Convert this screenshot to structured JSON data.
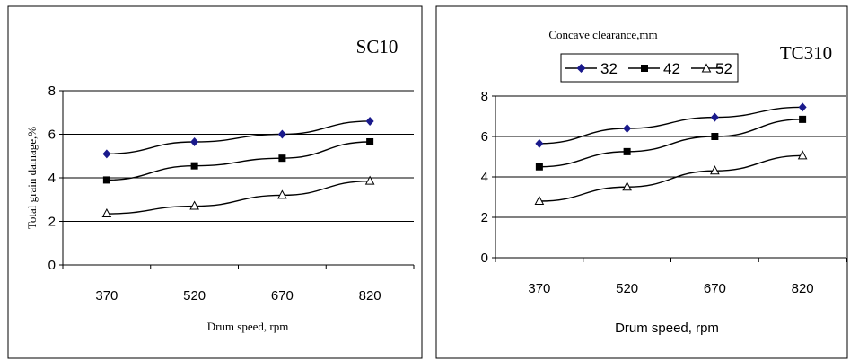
{
  "chart_data": [
    {
      "type": "line",
      "title": "SC10",
      "xlabel": "Drum speed, rpm",
      "ylabel": "Total grain damage,%",
      "categories": [
        "370",
        "520",
        "670",
        "820"
      ],
      "ylim": [
        0,
        8
      ],
      "yticks": [
        "0",
        "2",
        "4",
        "6",
        "8"
      ],
      "grid": true,
      "legend": null,
      "series": [
        {
          "values": [
            5.1,
            5.65,
            6.0,
            6.6
          ],
          "marker": "diamond",
          "color": "#1a1a8c"
        },
        {
          "values": [
            3.9,
            4.55,
            4.9,
            5.65
          ],
          "marker": "square",
          "color": "#000000"
        },
        {
          "values": [
            2.35,
            2.7,
            3.2,
            3.85
          ],
          "marker": "triangle",
          "color": "#000000"
        }
      ]
    },
    {
      "type": "line",
      "title": "TC310",
      "xlabel": "Drum speed, rpm",
      "ylabel": "",
      "categories": [
        "370",
        "520",
        "670",
        "820"
      ],
      "ylim": [
        0,
        8
      ],
      "yticks": [
        "0",
        "2",
        "4",
        "6",
        "8"
      ],
      "grid": true,
      "legend": "top",
      "legend_title": "Concave clearance,mm",
      "series": [
        {
          "name": "32",
          "values": [
            5.65,
            6.4,
            6.95,
            7.45
          ],
          "marker": "diamond",
          "color": "#1a1a8c"
        },
        {
          "name": "42",
          "values": [
            4.5,
            5.25,
            6.0,
            6.85
          ],
          "marker": "square",
          "color": "#000000"
        },
        {
          "name": "52",
          "values": [
            2.8,
            3.5,
            4.3,
            5.05
          ],
          "marker": "triangle",
          "color": "#000000"
        }
      ]
    }
  ]
}
